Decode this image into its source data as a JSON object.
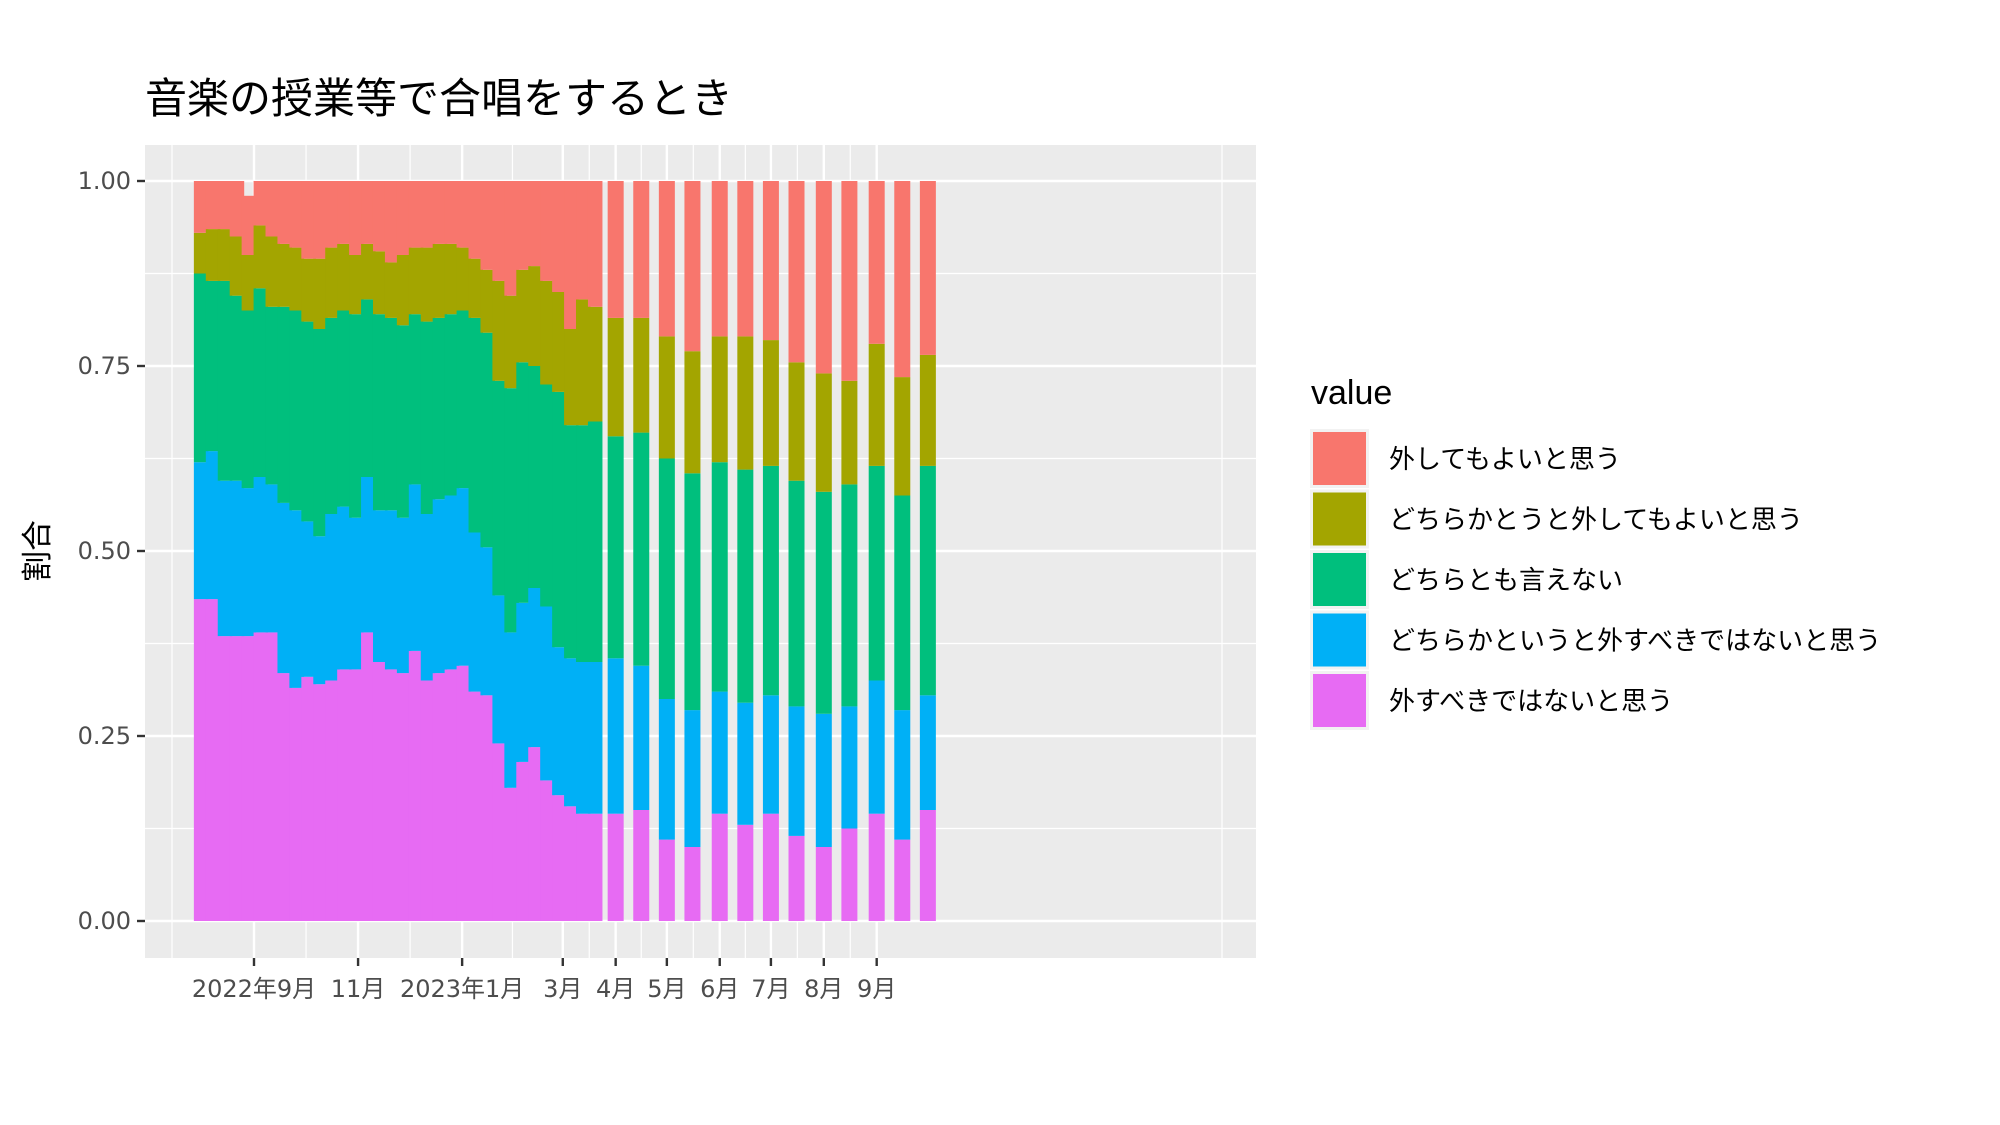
{
  "chart_data": {
    "type": "bar",
    "stacked": true,
    "title": "音楽の授業等で合唱をするとき",
    "xlabel": "",
    "ylabel": "割合",
    "ylim": [
      0,
      1
    ],
    "yticks": [
      "0.00",
      "0.25",
      "0.50",
      "0.75",
      "1.00"
    ],
    "xticks": [
      {
        "date": "2022-09-01",
        "label": "2022年9月"
      },
      {
        "date": "2022-11-01",
        "label": "11月"
      },
      {
        "date": "2023-01-01",
        "label": "2023年1月"
      },
      {
        "date": "2023-03-01",
        "label": "3月"
      },
      {
        "date": "2023-04-01",
        "label": "4月"
      },
      {
        "date": "2023-05-01",
        "label": "5月"
      },
      {
        "date": "2023-06-01",
        "label": "6月"
      },
      {
        "date": "2023-07-01",
        "label": "7月"
      },
      {
        "date": "2023-08-01",
        "label": "8月"
      },
      {
        "date": "2023-09-01",
        "label": "9月"
      }
    ],
    "x": [
      "2022-08-01",
      "2022-08-08",
      "2022-08-15",
      "2022-08-22",
      "2022-08-29",
      "2022-09-05",
      "2022-09-12",
      "2022-09-19",
      "2022-09-26",
      "2022-10-03",
      "2022-10-10",
      "2022-10-17",
      "2022-10-24",
      "2022-10-31",
      "2022-11-07",
      "2022-11-14",
      "2022-11-21",
      "2022-11-28",
      "2022-12-05",
      "2022-12-12",
      "2022-12-19",
      "2022-12-26",
      "2023-01-02",
      "2023-01-09",
      "2023-01-16",
      "2023-01-23",
      "2023-01-30",
      "2023-02-06",
      "2023-02-13",
      "2023-02-20",
      "2023-02-27",
      "2023-03-06",
      "2023-03-13",
      "2023-03-20",
      "2023-04-01",
      "2023-04-16",
      "2023-05-01",
      "2023-05-16",
      "2023-06-01",
      "2023-06-16",
      "2023-07-01",
      "2023-07-16",
      "2023-08-01",
      "2023-08-16",
      "2023-09-01",
      "2023-09-16",
      "2023-10-01"
    ],
    "legend_title": "value",
    "legend_position": "right",
    "series": [
      {
        "name": "外してもよいと思う",
        "color": "#F8766D",
        "values": [
          0.07,
          0.065,
          0.065,
          0.075,
          0.08,
          0.06,
          0.075,
          0.085,
          0.09,
          0.105,
          0.105,
          0.09,
          0.085,
          0.1,
          0.085,
          0.095,
          0.11,
          0.1,
          0.09,
          0.09,
          0.085,
          0.085,
          0.09,
          0.105,
          0.12,
          0.135,
          0.155,
          0.12,
          0.115,
          0.135,
          0.15,
          0.2,
          0.16,
          0.17,
          0.185,
          0.185,
          0.21,
          0.23,
          0.21,
          0.21,
          0.215,
          0.245,
          0.26,
          0.27,
          0.22,
          0.265,
          0.235
        ]
      },
      {
        "name": "どちらかとうと外してもよいと思う",
        "color": "#A3A500",
        "values": [
          0.055,
          0.07,
          0.07,
          0.08,
          0.075,
          0.085,
          0.095,
          0.085,
          0.085,
          0.085,
          0.095,
          0.095,
          0.09,
          0.08,
          0.075,
          0.085,
          0.075,
          0.095,
          0.09,
          0.1,
          0.1,
          0.095,
          0.085,
          0.08,
          0.085,
          0.135,
          0.125,
          0.125,
          0.135,
          0.14,
          0.135,
          0.13,
          0.17,
          0.155,
          0.16,
          0.155,
          0.165,
          0.165,
          0.17,
          0.18,
          0.17,
          0.16,
          0.16,
          0.14,
          0.165,
          0.16,
          0.15
        ]
      },
      {
        "name": "どちらとも言えない",
        "color": "#00BF7D",
        "values": [
          0.255,
          0.23,
          0.27,
          0.25,
          0.24,
          0.255,
          0.24,
          0.265,
          0.27,
          0.27,
          0.28,
          0.265,
          0.265,
          0.275,
          0.24,
          0.265,
          0.26,
          0.26,
          0.23,
          0.26,
          0.245,
          0.245,
          0.24,
          0.29,
          0.29,
          0.29,
          0.33,
          0.325,
          0.3,
          0.3,
          0.345,
          0.315,
          0.32,
          0.325,
          0.3,
          0.315,
          0.325,
          0.32,
          0.31,
          0.315,
          0.31,
          0.305,
          0.3,
          0.3,
          0.29,
          0.29,
          0.31
        ]
      },
      {
        "name": "どちらかというと外すべきではないと思う",
        "color": "#00B0F6",
        "values": [
          0.185,
          0.2,
          0.21,
          0.21,
          0.2,
          0.21,
          0.2,
          0.23,
          0.24,
          0.21,
          0.2,
          0.225,
          0.22,
          0.205,
          0.21,
          0.205,
          0.215,
          0.21,
          0.225,
          0.225,
          0.235,
          0.235,
          0.24,
          0.215,
          0.2,
          0.2,
          0.21,
          0.215,
          0.215,
          0.235,
          0.2,
          0.2,
          0.205,
          0.205,
          0.21,
          0.195,
          0.19,
          0.185,
          0.165,
          0.165,
          0.16,
          0.175,
          0.18,
          0.165,
          0.18,
          0.175,
          0.155
        ]
      },
      {
        "name": "外すべきではないと思う",
        "color": "#E76BF3",
        "values": [
          0.435,
          0.435,
          0.385,
          0.385,
          0.385,
          0.39,
          0.39,
          0.335,
          0.315,
          0.33,
          0.32,
          0.325,
          0.34,
          0.34,
          0.39,
          0.35,
          0.34,
          0.335,
          0.365,
          0.325,
          0.335,
          0.34,
          0.345,
          0.31,
          0.305,
          0.24,
          0.18,
          0.215,
          0.235,
          0.19,
          0.17,
          0.155,
          0.145,
          0.145,
          0.145,
          0.15,
          0.11,
          0.1,
          0.145,
          0.13,
          0.145,
          0.115,
          0.1,
          0.125,
          0.145,
          0.11,
          0.15
        ]
      }
    ]
  }
}
